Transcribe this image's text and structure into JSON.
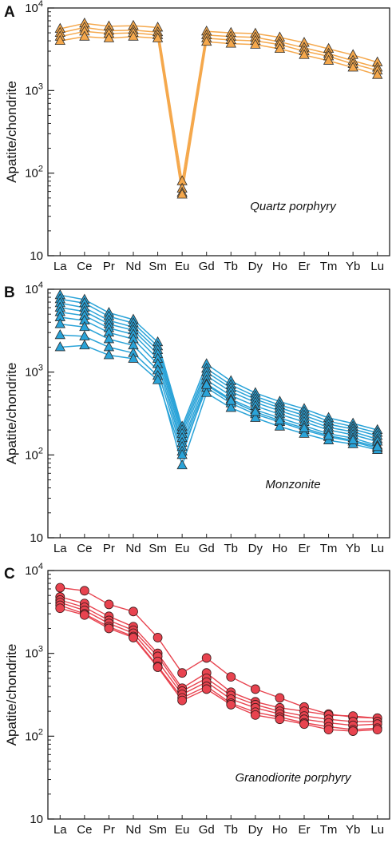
{
  "chart_data": [
    {
      "type": "line",
      "panel": "A",
      "annotation": "Quartz porphyry",
      "ylabel": "Apatite/chondrite",
      "yscale": "log",
      "ylim": [
        10,
        10000
      ],
      "yticks": [
        {
          "value": 10,
          "base": "10",
          "exp": ""
        },
        {
          "value": 100,
          "base": "10",
          "exp": "2"
        },
        {
          "value": 1000,
          "base": "10",
          "exp": "3"
        },
        {
          "value": 10000,
          "base": "10",
          "exp": "4"
        }
      ],
      "categories": [
        "La",
        "Ce",
        "Pr",
        "Nd",
        "Sm",
        "Eu",
        "Gd",
        "Tb",
        "Dy",
        "Ho",
        "Er",
        "Tm",
        "Yb",
        "Lu"
      ],
      "marker": "triangle",
      "color": "#f5a84c",
      "series": [
        {
          "values": [
            5600,
            6500,
            6000,
            6100,
            5800,
            80,
            5200,
            5000,
            4900,
            4400,
            3800,
            3200,
            2700,
            2200
          ]
        },
        {
          "values": [
            5000,
            5800,
            5300,
            5400,
            5100,
            65,
            4700,
            4500,
            4400,
            3900,
            3300,
            2800,
            2300,
            1900
          ]
        },
        {
          "values": [
            4500,
            5200,
            4900,
            5000,
            4700,
            58,
            4300,
            4100,
            4000,
            3600,
            3000,
            2600,
            2100,
            1750
          ]
        },
        {
          "values": [
            4000,
            4500,
            4300,
            4500,
            4300,
            55,
            3900,
            3700,
            3600,
            3200,
            2700,
            2300,
            1900,
            1550
          ]
        }
      ]
    },
    {
      "type": "line",
      "panel": "B",
      "annotation": "Monzonite",
      "ylabel": "Apatite/chondrite",
      "yscale": "log",
      "ylim": [
        10,
        10000
      ],
      "yticks": [
        {
          "value": 10,
          "base": "10",
          "exp": ""
        },
        {
          "value": 100,
          "base": "10",
          "exp": "2"
        },
        {
          "value": 1000,
          "base": "10",
          "exp": "3"
        },
        {
          "value": 10000,
          "base": "10",
          "exp": "4"
        }
      ],
      "categories": [
        "La",
        "Ce",
        "Pr",
        "Nd",
        "Sm",
        "Eu",
        "Gd",
        "Tb",
        "Dy",
        "Ho",
        "Er",
        "Tm",
        "Yb",
        "Lu"
      ],
      "marker": "triangle",
      "color": "#2aa3d8",
      "series": [
        {
          "values": [
            8500,
            7500,
            5200,
            4300,
            2300,
            220,
            1250,
            780,
            560,
            440,
            360,
            280,
            240,
            200
          ]
        },
        {
          "values": [
            7600,
            6800,
            4700,
            3900,
            2050,
            200,
            1100,
            700,
            510,
            400,
            330,
            255,
            220,
            185
          ]
        },
        {
          "values": [
            6800,
            6000,
            4200,
            3500,
            1850,
            180,
            1000,
            640,
            470,
            370,
            300,
            235,
            205,
            170
          ]
        },
        {
          "values": [
            6000,
            5400,
            3800,
            3200,
            1650,
            160,
            900,
            580,
            430,
            340,
            275,
            215,
            190,
            155
          ]
        },
        {
          "values": [
            5300,
            4800,
            3400,
            2850,
            1450,
            140,
            800,
            520,
            390,
            310,
            250,
            200,
            175,
            145
          ]
        },
        {
          "values": [
            4600,
            4200,
            3000,
            2500,
            1250,
            125,
            720,
            470,
            350,
            280,
            225,
            180,
            160,
            130
          ]
        },
        {
          "values": [
            3800,
            3500,
            2500,
            2100,
            1050,
            110,
            650,
            420,
            310,
            250,
            200,
            165,
            145,
            120
          ]
        },
        {
          "values": [
            2800,
            2700,
            2000,
            1700,
            900,
            75,
            560,
            370,
            280,
            220,
            180,
            150,
            135,
            115
          ]
        },
        {
          "values": [
            2000,
            2100,
            1600,
            1450,
            800,
            100,
            700,
            450,
            330,
            260,
            210,
            170,
            150,
            125
          ]
        }
      ]
    },
    {
      "type": "line",
      "panel": "C",
      "annotation": "Granodiorite porphyry",
      "ylabel": "Apatite/chondrite",
      "yscale": "log",
      "ylim": [
        10,
        10000
      ],
      "yticks": [
        {
          "value": 10,
          "base": "10",
          "exp": ""
        },
        {
          "value": 100,
          "base": "10",
          "exp": "2"
        },
        {
          "value": 1000,
          "base": "10",
          "exp": "3"
        },
        {
          "value": 10000,
          "base": "10",
          "exp": "4"
        }
      ],
      "categories": [
        "La",
        "Ce",
        "Pr",
        "Nd",
        "Sm",
        "Eu",
        "Gd",
        "Tb",
        "Dy",
        "Ho",
        "Er",
        "Tm",
        "Yb",
        "Lu"
      ],
      "marker": "circle",
      "color": "#e8434f",
      "series": [
        {
          "values": [
            6200,
            5700,
            3900,
            3200,
            1550,
            580,
            880,
            520,
            370,
            290,
            225,
            185,
            170,
            165
          ]
        },
        {
          "values": [
            4800,
            4000,
            2800,
            2100,
            1000,
            380,
            580,
            340,
            260,
            220,
            200,
            180,
            175,
            165
          ]
        },
        {
          "values": [
            4400,
            3600,
            2500,
            1900,
            920,
            350,
            500,
            310,
            240,
            200,
            175,
            160,
            150,
            150
          ]
        },
        {
          "values": [
            4100,
            3300,
            2300,
            1750,
            800,
            320,
            450,
            280,
            220,
            185,
            160,
            145,
            135,
            140
          ]
        },
        {
          "values": [
            3800,
            3000,
            2100,
            1600,
            700,
            290,
            400,
            250,
            195,
            170,
            145,
            130,
            120,
            125
          ]
        },
        {
          "values": [
            3500,
            2900,
            2000,
            1550,
            680,
            270,
            370,
            240,
            180,
            160,
            140,
            120,
            115,
            120
          ]
        }
      ]
    }
  ]
}
